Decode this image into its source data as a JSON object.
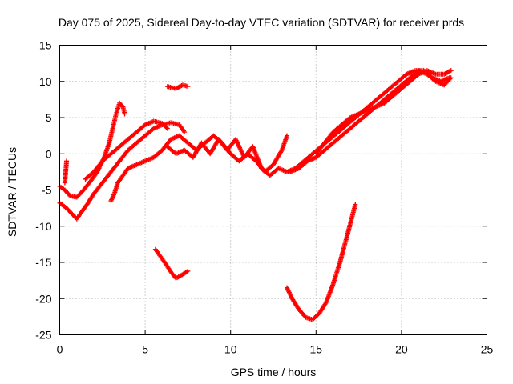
{
  "chart_data": {
    "type": "scatter",
    "title": "Day 075 of 2025, Sidereal Day-to-day VTEC variation (SDTVAR) for receiver prds",
    "xlabel": "GPS time / hours",
    "ylabel": "SDTVAR / TECUs",
    "xlim": [
      0,
      25
    ],
    "ylim": [
      -25,
      15
    ],
    "xticks": [
      0,
      5,
      10,
      15,
      20,
      25
    ],
    "yticks": [
      -25,
      -20,
      -15,
      -10,
      -5,
      0,
      5,
      10,
      15
    ],
    "grid": true,
    "marker": "+",
    "color": "#ff0000",
    "series": [
      {
        "points": [
          [
            0.0,
            -4.5
          ],
          [
            0.3,
            -5.0
          ],
          [
            0.6,
            -5.8
          ],
          [
            1.0,
            -6.0
          ],
          [
            1.4,
            -5.0
          ],
          [
            1.8,
            -3.8
          ],
          [
            2.2,
            -2.5
          ],
          [
            2.6,
            -0.5
          ],
          [
            2.9,
            1.5
          ],
          [
            3.1,
            3.5
          ],
          [
            3.3,
            5.5
          ],
          [
            3.5,
            7.0
          ],
          [
            3.7,
            6.5
          ],
          [
            3.8,
            5.5
          ]
        ]
      },
      {
        "points": [
          [
            0.3,
            -4.0
          ],
          [
            0.35,
            -2.5
          ],
          [
            0.4,
            -1.0
          ]
        ]
      },
      {
        "points": [
          [
            0.0,
            -6.8
          ],
          [
            0.4,
            -7.5
          ],
          [
            0.8,
            -8.5
          ],
          [
            1.0,
            -9.0
          ],
          [
            1.2,
            -8.3
          ],
          [
            1.6,
            -7.0
          ],
          [
            2.0,
            -5.5
          ],
          [
            2.5,
            -4.0
          ],
          [
            3.0,
            -2.5
          ],
          [
            3.5,
            -1.0
          ],
          [
            4.0,
            0.5
          ],
          [
            4.5,
            1.5
          ],
          [
            5.0,
            2.5
          ],
          [
            5.5,
            3.5
          ],
          [
            6.0,
            4.0
          ],
          [
            6.5,
            4.3
          ],
          [
            7.0,
            4.0
          ],
          [
            7.3,
            3.0
          ]
        ]
      },
      {
        "points": [
          [
            1.5,
            -3.5
          ],
          [
            2.0,
            -2.5
          ],
          [
            2.5,
            -1.0
          ],
          [
            3.0,
            0.0
          ],
          [
            3.5,
            1.0
          ],
          [
            4.0,
            2.0
          ],
          [
            4.5,
            3.0
          ],
          [
            5.0,
            4.0
          ],
          [
            5.5,
            4.5
          ],
          [
            6.0,
            4.2
          ],
          [
            6.3,
            3.5
          ]
        ]
      },
      {
        "points": [
          [
            3.0,
            -6.5
          ],
          [
            3.2,
            -5.5
          ],
          [
            3.4,
            -4.0
          ],
          [
            3.7,
            -3.0
          ],
          [
            4.0,
            -2.0
          ],
          [
            4.5,
            -1.5
          ],
          [
            5.0,
            -1.0
          ],
          [
            5.5,
            -0.5
          ],
          [
            6.0,
            0.5
          ],
          [
            6.5,
            2.0
          ],
          [
            7.0,
            2.5
          ],
          [
            7.5,
            1.5
          ],
          [
            8.0,
            0.5
          ],
          [
            8.5,
            1.5
          ],
          [
            9.0,
            2.5
          ],
          [
            9.5,
            1.5
          ],
          [
            10.0,
            0.0
          ],
          [
            10.5,
            -1.0
          ],
          [
            11.0,
            0.0
          ],
          [
            11.5,
            -1.0
          ],
          [
            12.0,
            -2.5
          ],
          [
            12.5,
            -1.5
          ],
          [
            13.0,
            0.5
          ],
          [
            13.3,
            2.5
          ]
        ]
      },
      {
        "points": [
          [
            6.3,
            1.0
          ],
          [
            6.8,
            0.0
          ],
          [
            7.3,
            0.5
          ],
          [
            7.8,
            -0.5
          ],
          [
            8.3,
            1.5
          ],
          [
            8.8,
            0.0
          ],
          [
            9.3,
            2.0
          ],
          [
            9.8,
            0.5
          ],
          [
            10.3,
            2.0
          ],
          [
            10.8,
            -0.5
          ],
          [
            11.3,
            1.0
          ],
          [
            11.8,
            -2.0
          ],
          [
            12.3,
            -3.0
          ],
          [
            12.8,
            -2.0
          ],
          [
            13.3,
            -2.5
          ],
          [
            13.8,
            -2.0
          ],
          [
            14.3,
            -1.0
          ],
          [
            14.8,
            0.0
          ],
          [
            15.3,
            1.0
          ],
          [
            15.8,
            2.0
          ],
          [
            16.3,
            3.0
          ],
          [
            16.8,
            4.0
          ],
          [
            17.3,
            5.0
          ],
          [
            17.8,
            6.0
          ],
          [
            18.3,
            7.0
          ],
          [
            18.8,
            8.0
          ],
          [
            19.3,
            9.0
          ],
          [
            19.8,
            10.0
          ],
          [
            20.3,
            11.0
          ],
          [
            20.8,
            11.5
          ],
          [
            21.3,
            11.5
          ],
          [
            21.8,
            10.5
          ],
          [
            22.3,
            10.0
          ],
          [
            22.8,
            10.5
          ]
        ]
      },
      {
        "points": [
          [
            13.5,
            -2.5
          ],
          [
            14.0,
            -2.0
          ],
          [
            14.5,
            -1.0
          ],
          [
            15.0,
            -0.5
          ],
          [
            15.5,
            0.5
          ],
          [
            16.0,
            1.5
          ],
          [
            16.5,
            2.5
          ],
          [
            17.0,
            3.5
          ],
          [
            17.5,
            4.5
          ],
          [
            18.0,
            5.5
          ],
          [
            18.5,
            6.5
          ],
          [
            19.0,
            7.5
          ],
          [
            19.5,
            8.5
          ],
          [
            20.0,
            9.5
          ],
          [
            20.5,
            10.5
          ],
          [
            21.0,
            11.5
          ],
          [
            21.5,
            11.0
          ],
          [
            22.0,
            10.0
          ],
          [
            22.5,
            9.5
          ],
          [
            22.9,
            10.5
          ]
        ]
      },
      {
        "points": [
          [
            15.0,
            0.0
          ],
          [
            15.5,
            1.5
          ],
          [
            16.0,
            3.0
          ],
          [
            16.5,
            4.0
          ],
          [
            17.0,
            5.0
          ],
          [
            17.5,
            5.5
          ],
          [
            18.0,
            6.0
          ],
          [
            18.5,
            6.5
          ],
          [
            19.0,
            7.0
          ],
          [
            19.5,
            8.0
          ],
          [
            20.0,
            9.0
          ],
          [
            20.5,
            10.0
          ],
          [
            21.0,
            11.0
          ],
          [
            21.5,
            11.5
          ],
          [
            22.0,
            11.0
          ],
          [
            22.5,
            11.0
          ],
          [
            22.9,
            11.5
          ]
        ]
      },
      {
        "points": [
          [
            6.3,
            9.3
          ],
          [
            6.8,
            9.0
          ],
          [
            7.2,
            9.5
          ],
          [
            7.5,
            9.3
          ]
        ]
      },
      {
        "points": [
          [
            5.6,
            -13.2
          ],
          [
            5.9,
            -14.2
          ],
          [
            6.2,
            -15.2
          ],
          [
            6.5,
            -16.3
          ],
          [
            6.8,
            -17.2
          ],
          [
            7.1,
            -16.8
          ],
          [
            7.5,
            -16.2
          ]
        ]
      },
      {
        "points": [
          [
            13.3,
            -18.5
          ],
          [
            13.6,
            -20.0
          ],
          [
            14.0,
            -21.5
          ],
          [
            14.4,
            -22.6
          ],
          [
            14.8,
            -22.9
          ],
          [
            15.2,
            -22.0
          ],
          [
            15.6,
            -20.5
          ],
          [
            16.0,
            -18.0
          ],
          [
            16.4,
            -15.0
          ],
          [
            16.8,
            -11.5
          ],
          [
            17.1,
            -8.8
          ],
          [
            17.3,
            -7.0
          ]
        ]
      }
    ]
  }
}
